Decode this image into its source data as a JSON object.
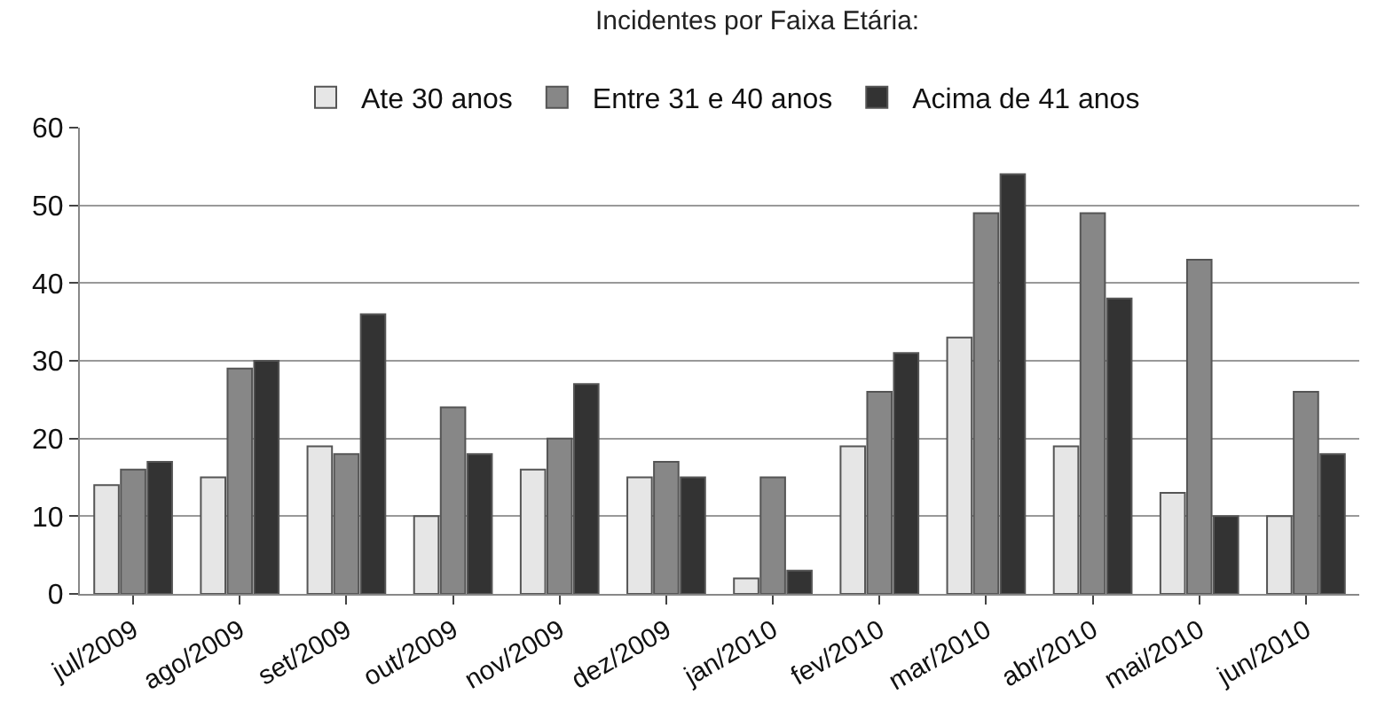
{
  "chart_data": {
    "type": "bar",
    "title": "Incidentes por Faixa Etária:",
    "categories": [
      "jul/2009",
      "ago/2009",
      "set/2009",
      "out/2009",
      "nov/2009",
      "dez/2009",
      "jan/2010",
      "fev/2010",
      "mar/2010",
      "abr/2010",
      "mai/2010",
      "jun/2010"
    ],
    "series": [
      {
        "name": "Ate 30 anos",
        "color": "#e6e6e6",
        "values": [
          14,
          15,
          19,
          10,
          16,
          15,
          2,
          19,
          33,
          19,
          13,
          10
        ]
      },
      {
        "name": "Entre 31 e 40 anos",
        "color": "#878787",
        "values": [
          16,
          29,
          18,
          24,
          20,
          17,
          15,
          26,
          49,
          49,
          43,
          26
        ]
      },
      {
        "name": "Acima de 41 anos",
        "color": "#333333",
        "values": [
          17,
          30,
          36,
          18,
          27,
          15,
          3,
          31,
          54,
          38,
          10,
          18
        ]
      }
    ],
    "ylim": [
      0,
      60
    ],
    "yticks": [
      0,
      10,
      20,
      30,
      40,
      50,
      60
    ],
    "grid": "y",
    "legend": "top"
  }
}
